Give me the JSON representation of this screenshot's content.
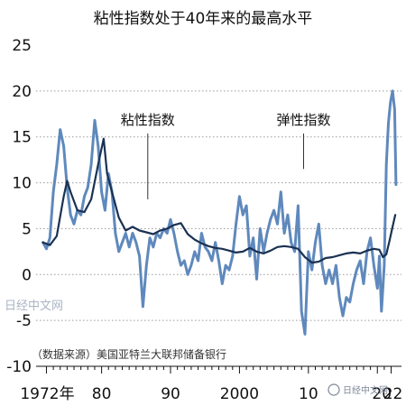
{
  "chart_data": {
    "type": "line",
    "title": "粘性指数处于40年来的最高水平",
    "source_note": "（数据来源）美国亚特兰大联邦储备银行",
    "watermark": "日经中文网",
    "footer_watermark": "日经中文网",
    "x_tick_labels": [
      "1972年",
      "80",
      "90",
      "2000",
      "10",
      "20",
      "22"
    ],
    "x_tick_values": [
      1972,
      1980,
      1990,
      2000,
      2010,
      2020,
      2022
    ],
    "xlim": [
      1970.5,
      2023.5
    ],
    "ylim": [
      -10,
      25
    ],
    "y_tick_values": [
      25,
      20,
      15,
      10,
      5,
      0,
      -5,
      -10
    ],
    "y_tick_labels": [
      "25",
      "20",
      "15",
      "10",
      "5",
      "0",
      "-5",
      "-10"
    ],
    "dotted_gridlines": [
      20,
      15,
      10,
      5,
      0,
      -5
    ],
    "colors": {
      "sticky": "#1a3152",
      "flexible": "#5f89bd",
      "grid": "#9a9a9a"
    },
    "series": [
      {
        "name": "粘性指数",
        "color": "#1a3152",
        "x": [
          1971.5,
          1972.5,
          1973.5,
          1974.5,
          1975.0,
          1975.5,
          1976.5,
          1977.5,
          1978.5,
          1979.5,
          1980.3,
          1980.8,
          1981.5,
          1982.5,
          1983.5,
          1984.5,
          1985.5,
          1986.5,
          1987.5,
          1988.5,
          1989.5,
          1990.5,
          1991.5,
          1992.5,
          1993.5,
          1994.5,
          1995.5,
          1996.5,
          1997.5,
          1998.5,
          1999.5,
          2000.5,
          2001.5,
          2002.5,
          2003.5,
          2004.5,
          2005.5,
          2006.5,
          2007.5,
          2008.5,
          2009.5,
          2010.5,
          2011.5,
          2012.5,
          2013.5,
          2014.5,
          2015.5,
          2016.5,
          2017.5,
          2018.5,
          2019.5,
          2020.3,
          2020.8,
          2021.3,
          2021.8,
          2022.3,
          2022.6
        ],
        "y": [
          3.5,
          3.2,
          4.2,
          8.5,
          10.2,
          9.0,
          7.0,
          6.8,
          8.2,
          12.0,
          14.8,
          11.0,
          9.0,
          6.2,
          4.8,
          5.2,
          4.8,
          4.6,
          4.4,
          4.8,
          5.0,
          5.4,
          5.6,
          4.4,
          3.8,
          3.4,
          3.1,
          2.9,
          2.8,
          2.6,
          2.4,
          2.5,
          2.9,
          2.5,
          2.3,
          2.6,
          3.0,
          3.1,
          3.0,
          2.8,
          1.9,
          1.3,
          1.4,
          1.8,
          1.9,
          2.1,
          2.3,
          2.4,
          2.3,
          2.6,
          2.8,
          2.7,
          1.9,
          2.2,
          3.8,
          5.5,
          6.5
        ]
      },
      {
        "name": "弹性指数",
        "color": "#5f89bd",
        "x": [
          1971.5,
          1972.0,
          1972.5,
          1973.0,
          1973.5,
          1974.0,
          1974.5,
          1975.0,
          1975.5,
          1976.0,
          1976.5,
          1977.0,
          1977.5,
          1978.0,
          1978.5,
          1979.0,
          1979.5,
          1980.0,
          1980.5,
          1981.0,
          1981.5,
          1982.0,
          1982.5,
          1983.0,
          1983.5,
          1984.0,
          1984.5,
          1985.0,
          1985.5,
          1986.0,
          1986.5,
          1987.0,
          1987.5,
          1988.0,
          1988.5,
          1989.0,
          1989.5,
          1990.0,
          1990.5,
          1991.0,
          1991.5,
          1992.0,
          1992.5,
          1993.0,
          1993.5,
          1994.0,
          1994.5,
          1995.0,
          1995.5,
          1996.0,
          1996.5,
          1997.0,
          1997.5,
          1998.0,
          1998.5,
          1999.0,
          1999.5,
          2000.0,
          2000.5,
          2001.0,
          2001.5,
          2002.0,
          2002.5,
          2003.0,
          2003.5,
          2004.0,
          2004.5,
          2005.0,
          2005.5,
          2006.0,
          2006.5,
          2007.0,
          2007.5,
          2008.0,
          2008.5,
          2009.0,
          2009.5,
          2010.0,
          2010.5,
          2011.0,
          2011.5,
          2012.0,
          2012.5,
          2013.0,
          2013.5,
          2014.0,
          2014.5,
          2015.0,
          2015.5,
          2016.0,
          2016.5,
          2017.0,
          2017.5,
          2018.0,
          2018.5,
          2019.0,
          2019.5,
          2020.0,
          2020.3,
          2020.6,
          2021.0,
          2021.3,
          2021.6,
          2021.9,
          2022.2,
          2022.5,
          2022.7
        ],
        "y": [
          3.5,
          2.8,
          4.0,
          9.0,
          12.0,
          15.8,
          14.0,
          9.5,
          6.5,
          5.5,
          7.0,
          6.5,
          8.5,
          9.5,
          12.0,
          16.8,
          14.0,
          9.0,
          7.0,
          11.0,
          9.0,
          4.5,
          2.5,
          3.5,
          4.5,
          3.0,
          4.5,
          3.5,
          2.0,
          -3.5,
          1.0,
          4.0,
          3.0,
          4.5,
          4.0,
          5.0,
          4.5,
          6.0,
          4.5,
          2.5,
          1.0,
          1.5,
          0.0,
          1.0,
          2.5,
          1.5,
          4.5,
          3.0,
          2.5,
          1.5,
          3.5,
          1.5,
          -1.0,
          1.0,
          0.5,
          2.0,
          5.5,
          8.5,
          6.5,
          7.5,
          2.0,
          4.0,
          -0.5,
          5.0,
          2.5,
          4.5,
          6.0,
          7.0,
          5.5,
          9.0,
          4.5,
          6.5,
          3.5,
          2.5,
          7.5,
          -4.0,
          -6.5,
          2.5,
          0.5,
          3.5,
          5.5,
          1.0,
          -1.0,
          0.5,
          -1.0,
          1.0,
          -2.5,
          -4.5,
          -2.5,
          -3.0,
          -1.0,
          0.5,
          1.5,
          -1.0,
          2.5,
          4.0,
          1.0,
          -1.5,
          2.0,
          -4.0,
          1.0,
          12.0,
          16.5,
          18.8,
          20.0,
          18.0,
          9.8
        ]
      }
    ],
    "annotations": [
      {
        "label": "粘性指数",
        "x": 1986.7,
        "y": 8.2
      },
      {
        "label": "弹性指数",
        "x": 2009.3,
        "y": 11.5
      }
    ]
  }
}
